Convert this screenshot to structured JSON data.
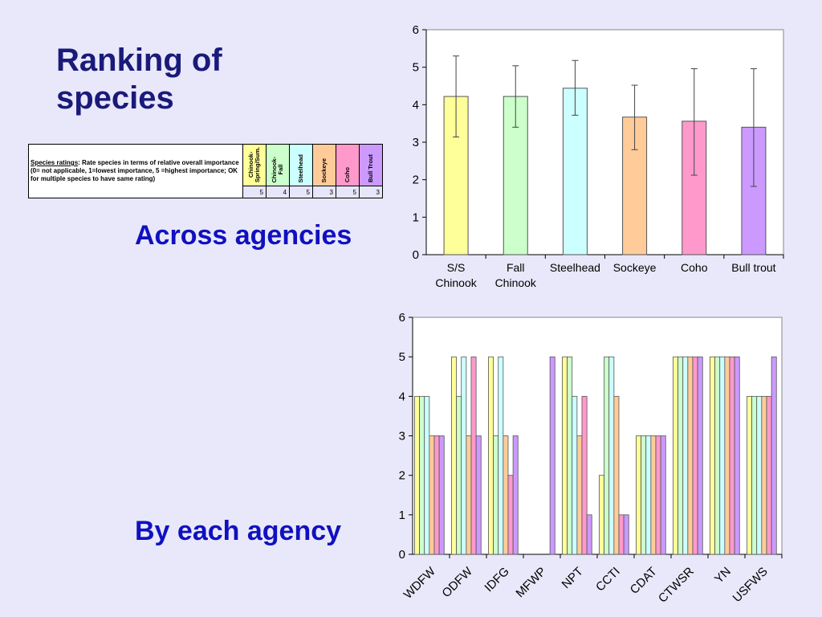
{
  "slide": {
    "title": "Ranking of\nspecies",
    "subtitle_across": "Across agencies",
    "subtitle_each": "By each agency"
  },
  "ratings_table": {
    "label_underlined": "Species ratings",
    "label_rest": ": Rate species in terms of relative overall importance (0= not applicable, 1=lowest importance,  5 =highest importance; OK for multiple species to have same rating)",
    "columns": [
      {
        "label": "Chinook-\nSpring/Sum.",
        "color": "#ffff99",
        "value": "5"
      },
      {
        "label": "Chinook-\nFall",
        "color": "#ccffcc",
        "value": "4"
      },
      {
        "label": "Steelhead",
        "color": "#ccffff",
        "value": "5"
      },
      {
        "label": "Sockeye",
        "color": "#ffcc99",
        "value": "3"
      },
      {
        "label": "Coho",
        "color": "#ff99cc",
        "value": "5"
      },
      {
        "label": "Bull Trout",
        "color": "#cc99ff",
        "value": "3"
      }
    ]
  },
  "chart_data": [
    {
      "type": "bar",
      "title": "",
      "categories": [
        "S/S\nChinook",
        "Fall\nChinook",
        "Steelhead",
        "Sockeye",
        "Coho",
        "Bull trout"
      ],
      "values": [
        4.22,
        4.22,
        4.44,
        3.67,
        3.56,
        3.4
      ],
      "error_low": [
        3.14,
        3.4,
        3.72,
        2.8,
        2.12,
        1.82
      ],
      "error_high": [
        5.3,
        5.04,
        5.18,
        4.52,
        4.96,
        4.96
      ],
      "colors": [
        "#ffff99",
        "#ccffcc",
        "#ccffff",
        "#ffcc99",
        "#ff99cc",
        "#cc99ff"
      ],
      "ylim": [
        0,
        6
      ],
      "yticks": [
        "0",
        "1",
        "2",
        "3",
        "4",
        "5",
        "6"
      ],
      "grid": false,
      "legend": "none"
    },
    {
      "type": "bar",
      "title": "",
      "categories": [
        "WDFW",
        "ODFW",
        "IDFG",
        "MFWP",
        "NPT",
        "CCTI",
        "CDAT",
        "CTWSR",
        "YN",
        "USFWS"
      ],
      "series": [
        {
          "values": [
            4,
            5,
            5,
            0,
            5,
            2,
            3,
            5,
            5,
            4
          ],
          "color": "#ffff99"
        },
        {
          "values": [
            4,
            4,
            3,
            0,
            5,
            5,
            3,
            5,
            5,
            4
          ],
          "color": "#ccffcc"
        },
        {
          "values": [
            4,
            5,
            5,
            0,
            4,
            5,
            3,
            5,
            5,
            4
          ],
          "color": "#ccffff"
        },
        {
          "values": [
            3,
            3,
            3,
            0,
            3,
            4,
            3,
            5,
            5,
            4
          ],
          "color": "#ffcc99"
        },
        {
          "values": [
            3,
            5,
            2,
            0,
            4,
            1,
            3,
            5,
            5,
            4
          ],
          "color": "#ff99cc"
        },
        {
          "values": [
            3,
            3,
            3,
            5,
            1,
            1,
            3,
            5,
            5,
            5
          ],
          "color": "#cc99ff"
        }
      ],
      "ylim": [
        0,
        6
      ],
      "yticks": [
        "0",
        "1",
        "2",
        "3",
        "4",
        "5",
        "6"
      ],
      "grid": false,
      "legend": "none"
    }
  ]
}
